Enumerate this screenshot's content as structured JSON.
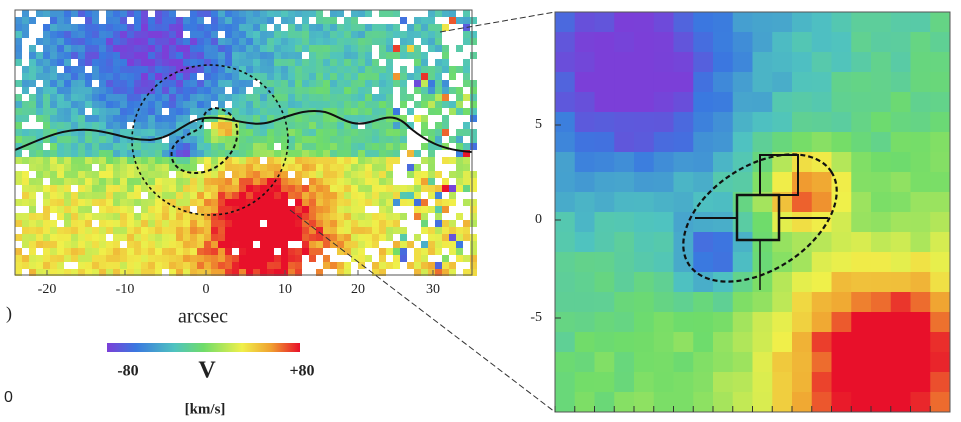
{
  "left_panel": {
    "x_ticks": [
      "-20",
      "-10",
      "0",
      "10",
      "20",
      "30"
    ],
    "x_label": "arcsec"
  },
  "colorbar": {
    "min_label": "-80",
    "symbol": "V",
    "max_label": "+80",
    "unit": "[km/s]"
  },
  "right_panel": {
    "y_ticks": [
      "5",
      "0",
      "-5"
    ]
  },
  "fragments": [
    ")",
    "0"
  ]
}
